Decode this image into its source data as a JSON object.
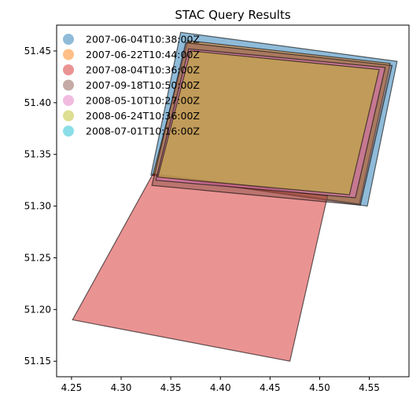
{
  "chart_data": {
    "type": "polygon-map",
    "title": "STAC Query Results",
    "xlabel": "",
    "ylabel": "",
    "xlim": [
      4.235,
      4.59
    ],
    "ylim": [
      51.135,
      51.475
    ],
    "xticks": [
      4.25,
      4.3,
      4.35,
      4.4,
      4.45,
      4.5,
      4.55
    ],
    "xtick_labels": [
      "4.25",
      "4.30",
      "4.35",
      "4.40",
      "4.45",
      "4.50",
      "4.55"
    ],
    "yticks": [
      51.15,
      51.2,
      51.25,
      51.3,
      51.35,
      51.4,
      51.45
    ],
    "ytick_labels": [
      "51.15",
      "51.20",
      "51.25",
      "51.30",
      "51.35",
      "51.40",
      "51.45"
    ],
    "grid": false,
    "legend_position": "top-left",
    "series": [
      {
        "name": "2007-06-04T10:38:00Z",
        "color": "#1f77b4",
        "polygon": [
          [
            4.36,
            51.468
          ],
          [
            4.578,
            51.44
          ],
          [
            4.548,
            51.3
          ],
          [
            4.33,
            51.33
          ]
        ]
      },
      {
        "name": "2007-06-22T10:44:00Z",
        "color": "#ff7f0e",
        "polygon": [
          [
            4.367,
            51.46
          ],
          [
            4.571,
            51.438
          ],
          [
            4.54,
            51.302
          ],
          [
            4.332,
            51.33
          ]
        ]
      },
      {
        "name": "2007-08-04T10:36:00Z",
        "color": "#d62728",
        "polygon": [
          [
            4.332,
            51.331
          ],
          [
            4.508,
            51.31
          ],
          [
            4.47,
            51.15
          ],
          [
            4.251,
            51.19
          ]
        ]
      },
      {
        "name": "2007-09-18T10:50:00Z",
        "color": "#8c564b",
        "polygon": [
          [
            4.365,
            51.458
          ],
          [
            4.573,
            51.436
          ],
          [
            4.541,
            51.301
          ],
          [
            4.331,
            51.32
          ]
        ]
      },
      {
        "name": "2008-05-10T10:27:00Z",
        "color": "#e377c2",
        "polygon": [
          [
            4.368,
            51.452
          ],
          [
            4.566,
            51.434
          ],
          [
            4.536,
            51.308
          ],
          [
            4.335,
            51.325
          ]
        ]
      },
      {
        "name": "2008-06-24T10:36:00Z",
        "color": "#bcbd22",
        "polygon": [
          [
            4.37,
            51.45
          ],
          [
            4.56,
            51.432
          ],
          [
            4.53,
            51.311
          ],
          [
            4.337,
            51.328
          ]
        ]
      },
      {
        "name": "2008-07-01T10:16:00Z",
        "color": "#17becf",
        "polygon": []
      }
    ]
  }
}
